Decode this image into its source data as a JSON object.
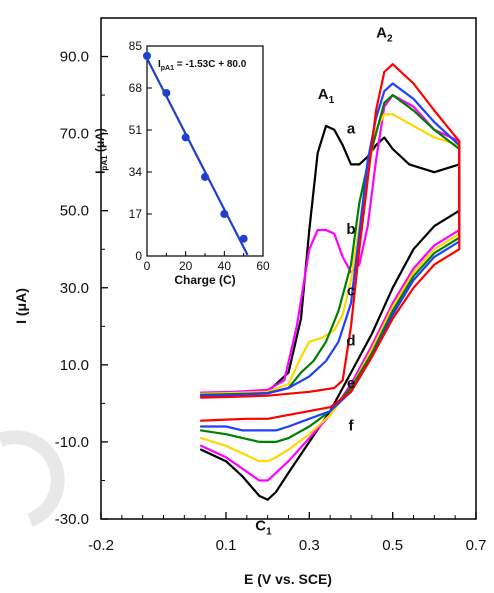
{
  "chart_data": [
    {
      "type": "line",
      "title": "",
      "xlabel": "E (V vs. SCE)",
      "ylabel": "I (μA)",
      "xlim": [
        -0.2,
        0.7
      ],
      "ylim": [
        -30.0,
        100.0
      ],
      "x_ticks": [
        "-0.2",
        "0.1",
        "0.3",
        "0.5",
        "0.7"
      ],
      "x_tick_values": [
        -0.2,
        0.1,
        0.3,
        0.5,
        0.7
      ],
      "y_ticks": [
        "-30.0",
        "-10.0",
        "10.0",
        "30.0",
        "50.0",
        "70.0",
        "90.0"
      ],
      "y_tick_values": [
        -30,
        -10,
        10,
        30,
        50,
        70,
        90
      ],
      "grid": false,
      "series": [
        {
          "name": "a",
          "color": "#000000",
          "anodic": [
            [
              0.04,
              2.0
            ],
            [
              0.12,
              2.2
            ],
            [
              0.2,
              3.0
            ],
            [
              0.25,
              8
            ],
            [
              0.28,
              22
            ],
            [
              0.3,
              45
            ],
            [
              0.32,
              65
            ],
            [
              0.34,
              72
            ],
            [
              0.36,
              71
            ],
            [
              0.38,
              67
            ],
            [
              0.4,
              62
            ],
            [
              0.42,
              62
            ],
            [
              0.44,
              64
            ],
            [
              0.46,
              67
            ],
            [
              0.48,
              69
            ],
            [
              0.5,
              66
            ],
            [
              0.54,
              62
            ],
            [
              0.6,
              60
            ],
            [
              0.66,
              62
            ]
          ],
          "cathodic": [
            [
              0.66,
              50
            ],
            [
              0.6,
              46
            ],
            [
              0.55,
              40
            ],
            [
              0.5,
              30
            ],
            [
              0.45,
              18
            ],
            [
              0.4,
              8
            ],
            [
              0.35,
              -2
            ],
            [
              0.3,
              -10
            ],
            [
              0.25,
              -18
            ],
            [
              0.22,
              -23
            ],
            [
              0.2,
              -25
            ],
            [
              0.18,
              -24
            ],
            [
              0.14,
              -19
            ],
            [
              0.1,
              -15
            ],
            [
              0.04,
              -12
            ]
          ]
        },
        {
          "name": "b",
          "color": "#ff00ff",
          "anodic": [
            [
              0.04,
              2.8
            ],
            [
              0.12,
              3.0
            ],
            [
              0.2,
              3.5
            ],
            [
              0.24,
              6
            ],
            [
              0.27,
              20
            ],
            [
              0.3,
              40
            ],
            [
              0.32,
              45
            ],
            [
              0.34,
              45
            ],
            [
              0.36,
              44
            ],
            [
              0.38,
              38
            ],
            [
              0.4,
              34
            ],
            [
              0.42,
              36
            ],
            [
              0.44,
              46
            ],
            [
              0.46,
              63
            ],
            [
              0.48,
              77
            ],
            [
              0.5,
              80
            ],
            [
              0.55,
              77
            ],
            [
              0.6,
              71
            ],
            [
              0.66,
              68
            ]
          ],
          "cathodic": [
            [
              0.66,
              45
            ],
            [
              0.6,
              41
            ],
            [
              0.55,
              35
            ],
            [
              0.5,
              26
            ],
            [
              0.45,
              15
            ],
            [
              0.4,
              5
            ],
            [
              0.35,
              -3
            ],
            [
              0.3,
              -9
            ],
            [
              0.25,
              -15
            ],
            [
              0.22,
              -18
            ],
            [
              0.2,
              -20
            ],
            [
              0.18,
              -20
            ],
            [
              0.14,
              -17
            ],
            [
              0.1,
              -14
            ],
            [
              0.04,
              -11
            ]
          ]
        },
        {
          "name": "c",
          "color": "#ffd700",
          "anodic": [
            [
              0.04,
              2.5
            ],
            [
              0.12,
              2.7
            ],
            [
              0.2,
              3.0
            ],
            [
              0.25,
              5
            ],
            [
              0.28,
              12
            ],
            [
              0.3,
              16
            ],
            [
              0.33,
              17
            ],
            [
              0.36,
              19
            ],
            [
              0.38,
              23
            ],
            [
              0.4,
              32
            ],
            [
              0.42,
              46
            ],
            [
              0.44,
              60
            ],
            [
              0.46,
              71
            ],
            [
              0.48,
              75
            ],
            [
              0.5,
              75
            ],
            [
              0.55,
              72
            ],
            [
              0.6,
              69
            ],
            [
              0.66,
              67
            ]
          ],
          "cathodic": [
            [
              0.66,
              44
            ],
            [
              0.6,
              40
            ],
            [
              0.55,
              34
            ],
            [
              0.5,
              25
            ],
            [
              0.45,
              14
            ],
            [
              0.4,
              4
            ],
            [
              0.35,
              -3
            ],
            [
              0.3,
              -8
            ],
            [
              0.25,
              -12
            ],
            [
              0.22,
              -14
            ],
            [
              0.2,
              -15
            ],
            [
              0.18,
              -15
            ],
            [
              0.14,
              -13
            ],
            [
              0.1,
              -11
            ],
            [
              0.04,
              -9
            ]
          ]
        },
        {
          "name": "d",
          "color": "#008000",
          "anodic": [
            [
              0.04,
              2.2
            ],
            [
              0.12,
              2.4
            ],
            [
              0.2,
              2.7
            ],
            [
              0.25,
              4
            ],
            [
              0.28,
              8
            ],
            [
              0.31,
              11
            ],
            [
              0.34,
              16
            ],
            [
              0.37,
              24
            ],
            [
              0.4,
              36
            ],
            [
              0.42,
              52
            ],
            [
              0.44,
              62
            ],
            [
              0.46,
              70
            ],
            [
              0.48,
              78
            ],
            [
              0.5,
              80
            ],
            [
              0.55,
              76
            ],
            [
              0.6,
              71
            ],
            [
              0.66,
              66
            ]
          ],
          "cathodic": [
            [
              0.66,
              43
            ],
            [
              0.6,
              39
            ],
            [
              0.55,
              33
            ],
            [
              0.5,
              24
            ],
            [
              0.45,
              13
            ],
            [
              0.4,
              4
            ],
            [
              0.35,
              -2
            ],
            [
              0.3,
              -6
            ],
            [
              0.25,
              -9
            ],
            [
              0.22,
              -10
            ],
            [
              0.2,
              -10
            ],
            [
              0.18,
              -10
            ],
            [
              0.14,
              -9
            ],
            [
              0.1,
              -8
            ],
            [
              0.04,
              -7
            ]
          ]
        },
        {
          "name": "e",
          "color": "#1f3fff",
          "anodic": [
            [
              0.04,
              2.0
            ],
            [
              0.12,
              2.2
            ],
            [
              0.2,
              2.6
            ],
            [
              0.25,
              4
            ],
            [
              0.3,
              7
            ],
            [
              0.34,
              11
            ],
            [
              0.37,
              16
            ],
            [
              0.4,
              26
            ],
            [
              0.42,
              44
            ],
            [
              0.44,
              63
            ],
            [
              0.46,
              74
            ],
            [
              0.48,
              81
            ],
            [
              0.5,
              83
            ],
            [
              0.55,
              79
            ],
            [
              0.6,
              73
            ],
            [
              0.66,
              67
            ]
          ],
          "cathodic": [
            [
              0.66,
              42
            ],
            [
              0.6,
              38
            ],
            [
              0.55,
              32
            ],
            [
              0.5,
              23
            ],
            [
              0.45,
              12
            ],
            [
              0.4,
              3
            ],
            [
              0.35,
              -2
            ],
            [
              0.3,
              -4
            ],
            [
              0.25,
              -6
            ],
            [
              0.22,
              -7
            ],
            [
              0.2,
              -7
            ],
            [
              0.18,
              -7
            ],
            [
              0.14,
              -7
            ],
            [
              0.1,
              -6
            ],
            [
              0.04,
              -6
            ]
          ]
        },
        {
          "name": "f",
          "color": "#ff0000",
          "anodic": [
            [
              0.04,
              1.5
            ],
            [
              0.12,
              1.7
            ],
            [
              0.2,
              2.0
            ],
            [
              0.3,
              3.0
            ],
            [
              0.36,
              4.0
            ],
            [
              0.38,
              6
            ],
            [
              0.4,
              20
            ],
            [
              0.42,
              40
            ],
            [
              0.44,
              58
            ],
            [
              0.46,
              76
            ],
            [
              0.48,
              86
            ],
            [
              0.5,
              88
            ],
            [
              0.55,
              83
            ],
            [
              0.6,
              76
            ],
            [
              0.66,
              68
            ]
          ],
          "cathodic": [
            [
              0.66,
              40
            ],
            [
              0.6,
              36
            ],
            [
              0.55,
              30
            ],
            [
              0.5,
              22
            ],
            [
              0.45,
              12
            ],
            [
              0.4,
              3
            ],
            [
              0.35,
              -1
            ],
            [
              0.3,
              -2
            ],
            [
              0.25,
              -3
            ],
            [
              0.2,
              -4
            ],
            [
              0.15,
              -4
            ],
            [
              0.1,
              -4.2
            ],
            [
              0.04,
              -4.5
            ]
          ]
        }
      ],
      "annotations": [
        {
          "text": "A",
          "sub": "1",
          "x": 0.34,
          "y": 79
        },
        {
          "text": "A",
          "sub": "2",
          "x": 0.48,
          "y": 95
        },
        {
          "text": "C",
          "sub": "1",
          "x": 0.19,
          "y": -33
        },
        {
          "text": "a",
          "x": 0.4,
          "y": 70
        },
        {
          "text": "b",
          "x": 0.4,
          "y": 44
        },
        {
          "text": "c",
          "x": 0.4,
          "y": 28
        },
        {
          "text": "d",
          "x": 0.4,
          "y": 15
        },
        {
          "text": "e",
          "x": 0.4,
          "y": 4
        },
        {
          "text": "f",
          "x": 0.4,
          "y": -7
        }
      ]
    },
    {
      "type": "scatter",
      "title": "",
      "xlabel": "Charge (C)",
      "ylabel": "I_pA1 (μA)",
      "xlim": [
        0,
        60
      ],
      "ylim": [
        0,
        85
      ],
      "x_ticks": [
        "0",
        "20",
        "40",
        "60"
      ],
      "x_tick_values": [
        0,
        20,
        40,
        60
      ],
      "y_ticks": [
        "0",
        "17",
        "34",
        "51",
        "68",
        "85"
      ],
      "y_tick_values": [
        0,
        17,
        34,
        51,
        68,
        85
      ],
      "points": [
        [
          0,
          81
        ],
        [
          10,
          66
        ],
        [
          20,
          48
        ],
        [
          30,
          32
        ],
        [
          40,
          17
        ],
        [
          50,
          7
        ]
      ],
      "fit": {
        "slope": -1.53,
        "intercept": 80.0,
        "label": "I_pA1 = -1.53C + 80.0",
        "x_range": [
          0,
          52
        ]
      },
      "marker_color": "#1f3fcc",
      "line_color": "#1f3fcc"
    }
  ],
  "labels": {
    "main_xlabel": "E (V vs. SCE)",
    "main_ylabel_prefix": "I (",
    "main_ylabel_mu": "μ",
    "main_ylabel_suffix": "A)",
    "inset_xlabel": "Charge (C)",
    "inset_ylabel_main": "I",
    "inset_ylabel_sub": "pA1",
    "inset_ylabel_tail": " (μA)",
    "inset_eq_main": "I",
    "inset_eq_sub": "pA1",
    "inset_eq_tail": " = -1.53C + 80.0"
  }
}
